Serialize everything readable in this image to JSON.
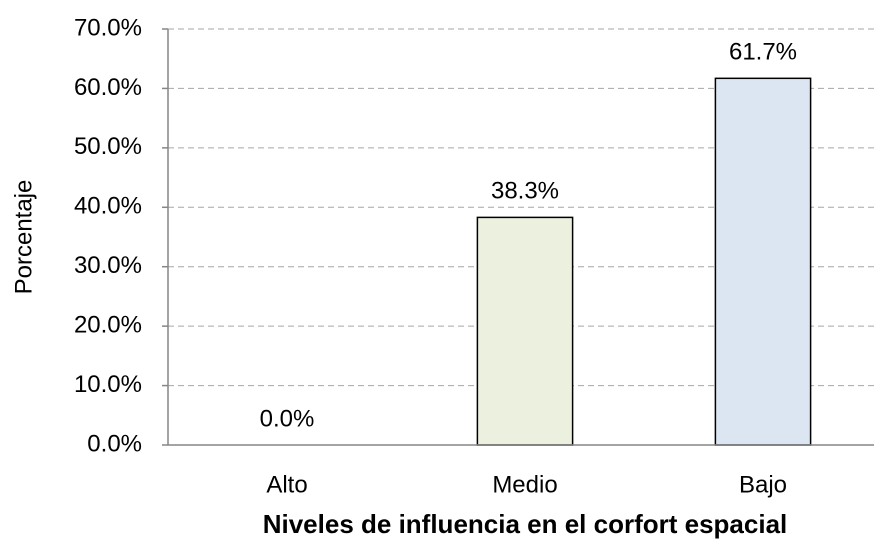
{
  "chart_data": {
    "type": "bar",
    "categories": [
      "Alto",
      "Medio",
      "Bajo"
    ],
    "values": [
      0,
      38.3,
      61.7
    ],
    "value_labels": [
      "0.0%",
      "38.3%",
      "61.7%"
    ],
    "colors": [
      "#f2dcdb",
      "#ebf1de",
      "#dce6f2"
    ],
    "x_label": "Niveles de influencia en el corfort espacial",
    "y_label": "Porcentaje",
    "ylim": [
      0,
      70
    ],
    "yticks": [
      {
        "value": 0,
        "label": "0.0%"
      },
      {
        "value": 10,
        "label": "10.0%"
      },
      {
        "value": 20,
        "label": "20.0%"
      },
      {
        "value": 30,
        "label": "30.0%"
      },
      {
        "value": 40,
        "label": "40.0%"
      },
      {
        "value": 50,
        "label": "50.0%"
      },
      {
        "value": 60,
        "label": "60.0%"
      },
      {
        "value": 70,
        "label": "70.0%"
      }
    ],
    "grid": true
  }
}
